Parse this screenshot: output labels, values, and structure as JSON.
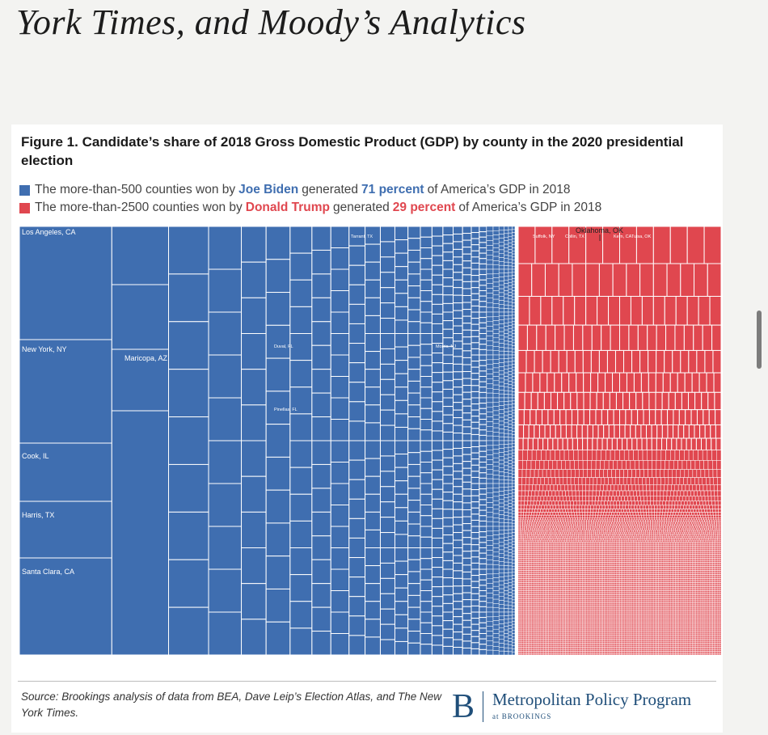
{
  "page_heading": "York Times, and Moody’s Analytics",
  "figure": {
    "title": "Figure 1. Candidate’s share of 2018 Gross Domestic Product (GDP) by county in the 2020 presidential election",
    "colors": {
      "biden": "#3f6eb0",
      "trump": "#e0474f"
    },
    "legend": [
      {
        "swatch": "#3f6eb0",
        "before": "The more-than-500 counties won by",
        "name": "Joe Biden",
        "middle": "generated",
        "pct": "71 percent",
        "after": "of America’s GDP in 2018"
      },
      {
        "swatch": "#e0474f",
        "before": "The more-than-2500 counties won by",
        "name": "Donald Trump",
        "middle": "generated",
        "pct": "29 percent",
        "after": "of America’s GDP in 2018"
      }
    ],
    "source": "Source: Brookings analysis of data from BEA, Dave Leip’s Election Atlas, and The New York Times.",
    "logo": {
      "letter": "B",
      "main": "Metropolitan Policy Program",
      "sub": "at BROOKINGS"
    }
  },
  "chart_data": {
    "type": "treemap",
    "title": "Candidate’s share of 2018 Gross Domestic Product (GDP) by county in the 2020 presidential election",
    "series": [
      {
        "name": "Joe Biden",
        "share_percent": 71,
        "counties": "more-than-500",
        "color": "#3f6eb0"
      },
      {
        "name": "Donald Trump",
        "share_percent": 29,
        "counties": "more-than-2500",
        "color": "#e0474f"
      }
    ],
    "labeled_counties": [
      {
        "label": "Los Angeles, CA",
        "winner": "Joe Biden"
      },
      {
        "label": "New York, NY",
        "winner": "Joe Biden"
      },
      {
        "label": "Cook, IL",
        "winner": "Joe Biden"
      },
      {
        "label": "Harris, TX",
        "winner": "Joe Biden"
      },
      {
        "label": "Santa Clara, CA",
        "winner": "Joe Biden"
      },
      {
        "label": "Maricopa, AZ",
        "winner": "Joe Biden"
      },
      {
        "label": "Tarrant, TX",
        "winner": "Joe Biden"
      },
      {
        "label": "Duval, FL",
        "winner": "Joe Biden"
      },
      {
        "label": "Morris, NJ",
        "winner": "Joe Biden"
      },
      {
        "label": "Pinellas, FL",
        "winner": "Joe Biden"
      },
      {
        "label": "Suffolk, NY",
        "winner": "Donald Trump"
      },
      {
        "label": "Collin, TX",
        "winner": "Donald Trump"
      },
      {
        "label": "Kern, CA",
        "winner": "Donald Trump"
      },
      {
        "label": "Tulsa, OK",
        "winner": "Donald Trump"
      }
    ],
    "annotation": "Oklahoma, OK"
  }
}
